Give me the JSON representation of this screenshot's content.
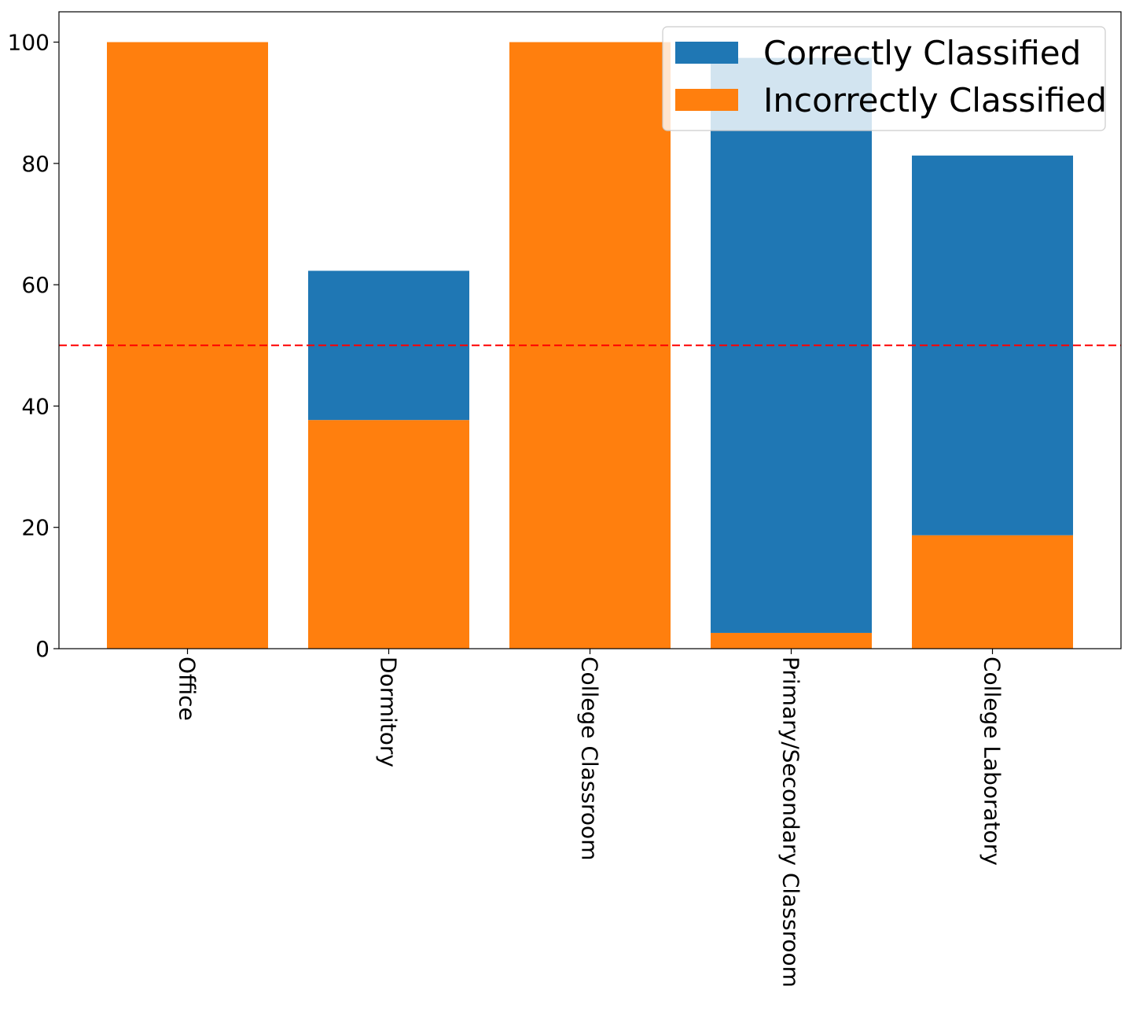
{
  "chart_data": {
    "type": "bar",
    "stacked": true,
    "categories": [
      "Office",
      "Dormitory",
      "College Classroom",
      "Primary/Secondary Classroom",
      "College Laboratory"
    ],
    "series": [
      {
        "name": "Incorrectly Classified",
        "values": [
          100,
          37.7,
          100,
          2.6,
          18.7
        ],
        "color": "#ff7f0e"
      },
      {
        "name": "Correctly Classified",
        "values": [
          0,
          24.6,
          0,
          94.8,
          62.6
        ],
        "color": "#1f77b4"
      }
    ],
    "legend_order": [
      "Correctly Classified",
      "Incorrectly Classified"
    ],
    "legend_position": "upper-right",
    "reference_line": {
      "y": 50,
      "color": "#ff0000",
      "style": "dashed"
    },
    "ylim": [
      0,
      105
    ],
    "yticks": [
      0,
      20,
      40,
      60,
      80,
      100
    ],
    "title": "",
    "xlabel": "",
    "ylabel": "",
    "grid": false,
    "xtick_rotation": "vertical"
  }
}
